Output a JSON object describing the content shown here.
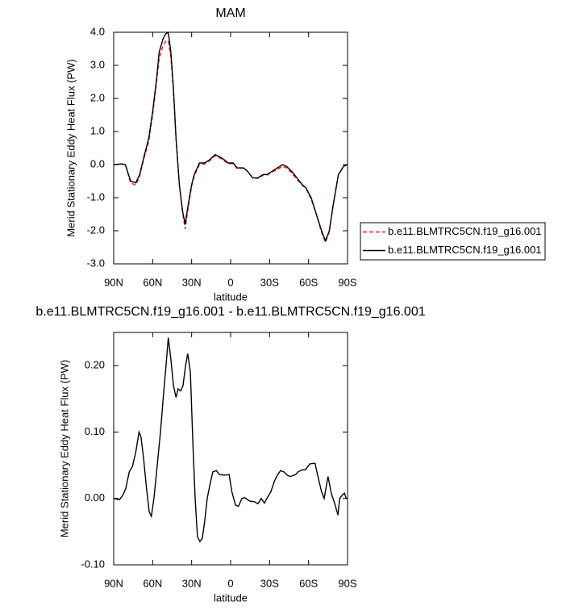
{
  "chart_data": [
    {
      "type": "line",
      "title": "MAM",
      "xlabel": "latitude",
      "ylabel": "Merid Stationary Eddy Heat Flux (PW)",
      "x": [
        90,
        84,
        81,
        77,
        73,
        70,
        67,
        63,
        60,
        57,
        55,
        52,
        50,
        48,
        46,
        44,
        42,
        39.5,
        37,
        35,
        33,
        30,
        28,
        24,
        20,
        16,
        12,
        9,
        5,
        2,
        -2,
        -5,
        -10,
        -13,
        -17,
        -21,
        -25,
        -28,
        -32,
        -36,
        -40,
        -43,
        -47,
        -51,
        -55,
        -58,
        -62,
        -66,
        -70,
        -73,
        -76,
        -79,
        -83,
        -87,
        -90
      ],
      "series": [
        {
          "name": "b.e11.BLMTRC5CN.f19_g16.001",
          "color": "#e0201b",
          "linestyle": "dashed",
          "values": [
            0,
            0.02,
            0,
            -0.55,
            -0.62,
            -0.35,
            0.15,
            0.7,
            1.5,
            2.5,
            3.2,
            3.6,
            3.72,
            3.75,
            3.25,
            2.2,
            0.75,
            -0.6,
            -1.45,
            -1.95,
            -1.4,
            -0.65,
            -0.35,
            0.0,
            0.02,
            0.12,
            0.27,
            0.22,
            0.12,
            0.03,
            0.03,
            -0.12,
            -0.1,
            -0.2,
            -0.4,
            -0.42,
            -0.32,
            -0.32,
            -0.22,
            -0.15,
            -0.05,
            -0.1,
            -0.25,
            -0.45,
            -0.62,
            -0.72,
            -1.05,
            -1.5,
            -2.05,
            -2.35,
            -2.03,
            -1.22,
            -0.3,
            -0.05,
            0
          ]
        },
        {
          "name": "b.e11.BLMTRC5CN.f19_g16.001",
          "color": "#000000",
          "linestyle": "solid",
          "values": [
            0,
            0.02,
            0,
            -0.5,
            -0.55,
            -0.3,
            0.2,
            0.8,
            1.6,
            2.6,
            3.4,
            3.8,
            3.95,
            4.0,
            3.4,
            2.3,
            0.8,
            -0.6,
            -1.4,
            -1.8,
            -1.3,
            -0.6,
            -0.3,
            0.05,
            0.05,
            0.15,
            0.3,
            0.25,
            0.15,
            0.05,
            0.05,
            -0.1,
            -0.1,
            -0.2,
            -0.4,
            -0.4,
            -0.3,
            -0.3,
            -0.2,
            -0.1,
            0,
            -0.05,
            -0.2,
            -0.4,
            -0.6,
            -0.7,
            -1.0,
            -1.5,
            -2.0,
            -2.3,
            -2.0,
            -1.2,
            -0.3,
            -0.05,
            0
          ]
        }
      ],
      "xlim": [
        90,
        -90
      ],
      "xticks": [
        {
          "value": 90,
          "label": "90N"
        },
        {
          "value": 60,
          "label": "60N"
        },
        {
          "value": 30,
          "label": "30N"
        },
        0,
        {
          "value": -30,
          "label": "30S"
        },
        {
          "value": -60,
          "label": "60S"
        },
        {
          "value": -90,
          "label": "90S"
        }
      ],
      "ylim": [
        -3,
        4
      ],
      "yticks": [
        {
          "value": 4,
          "label": "4.0"
        },
        {
          "value": 3,
          "label": "3.0"
        },
        {
          "value": 2,
          "label": "2.0"
        },
        {
          "value": 1,
          "label": "1.0"
        },
        {
          "value": 0,
          "label": "0.0"
        },
        {
          "value": -1,
          "label": "-1.0"
        },
        {
          "value": -2,
          "label": "-2.0"
        },
        {
          "value": -3,
          "label": "-3.0"
        }
      ],
      "legend": "right"
    },
    {
      "type": "line",
      "title": "b.e11.BLMTRC5CN.f19_g16.001 - b.e11.BLMTRC5CN.f19_g16.001",
      "xlabel": "latitude",
      "ylabel": "Merid Stationary Eddy Heat Flux (PW)",
      "x": [
        90,
        85.6,
        83,
        80.7,
        78,
        75.6,
        73,
        70.5,
        69,
        67,
        65,
        62.7,
        61,
        59,
        56.5,
        54,
        51.5,
        49.7,
        48,
        46,
        44,
        42,
        40.5,
        38.5,
        36.6,
        34.7,
        33,
        31,
        29,
        27.3,
        25.5,
        23.6,
        21.8,
        20,
        18,
        16,
        13.7,
        11,
        8.7,
        5,
        1.2,
        -1,
        -3.7,
        -6,
        -8.7,
        -11,
        -14.6,
        -18.3,
        -21,
        -23.6,
        -26,
        -28.5,
        -31,
        -33.5,
        -36,
        -38.5,
        -41,
        -43.6,
        -46,
        -50,
        -52,
        -55,
        -57.5,
        -61,
        -65,
        -67,
        -70,
        -72,
        -75,
        -77.6,
        -80,
        -82.6,
        -84,
        -86,
        -87.6,
        -89,
        -90
      ],
      "series": [
        {
          "color": "#000000",
          "linestyle": "solid",
          "values": [
            0,
            -0.002,
            0.005,
            0.015,
            0.04,
            0.048,
            0.07,
            0.1,
            0.093,
            0.06,
            0.02,
            -0.02,
            -0.027,
            0,
            0.05,
            0.1,
            0.16,
            0.2,
            0.242,
            0.21,
            0.17,
            0.152,
            0.165,
            0.162,
            0.17,
            0.2,
            0.218,
            0.19,
            0.08,
            0,
            -0.058,
            -0.065,
            -0.06,
            -0.035,
            0,
            0.02,
            0.04,
            0.042,
            0.036,
            0.035,
            0.036,
            0.01,
            -0.01,
            -0.012,
            0,
            0.001,
            -0.004,
            -0.005,
            -0.008,
            0,
            -0.007,
            0.002,
            0.01,
            0.025,
            0.035,
            0.042,
            0.04,
            0.035,
            0.033,
            0.036,
            0.04,
            0.043,
            0.043,
            0.052,
            0.053,
            0.035,
            0.01,
            0,
            0.033,
            0.007,
            -0.007,
            -0.025,
            0,
            0.005,
            0.008,
            0,
            0
          ]
        }
      ],
      "xlim": [
        90,
        -90
      ],
      "xticks": [
        {
          "value": 90,
          "label": "90N"
        },
        {
          "value": 60,
          "label": "60N"
        },
        {
          "value": 30,
          "label": "30N"
        },
        0,
        {
          "value": -30,
          "label": "30S"
        },
        {
          "value": -60,
          "label": "60S"
        },
        {
          "value": -90,
          "label": "90S"
        }
      ],
      "ylim": [
        -0.1,
        0.25
      ],
      "yticks": [
        {
          "value": 0.2,
          "label": "0.20"
        },
        {
          "value": 0.1,
          "label": "0.10"
        },
        {
          "value": 0,
          "label": "0.00"
        },
        {
          "value": -0.1,
          "label": "-0.10"
        }
      ]
    }
  ]
}
